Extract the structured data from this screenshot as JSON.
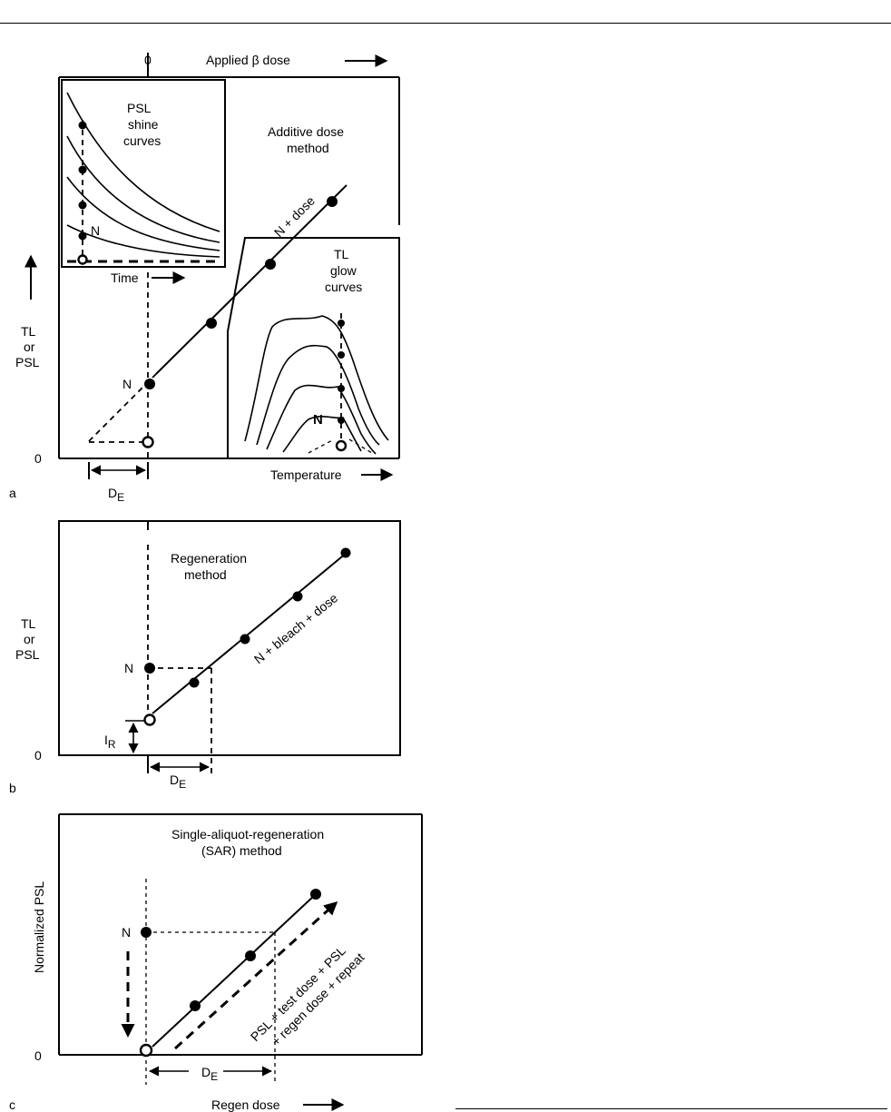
{
  "panel_a": {
    "letter": "a",
    "top_axis": {
      "zero": "0",
      "label": "Applied β dose"
    },
    "y_axis": {
      "line1": "TL",
      "line2": "or",
      "line3": "PSL",
      "zero": "0"
    },
    "method_title": {
      "line1": "Additive dose",
      "line2": "method"
    },
    "line_label": "N + dose",
    "n_label": "N",
    "de_label": {
      "main": "D",
      "sub": "E"
    },
    "psl_inset": {
      "line1": "PSL",
      "line2": "shine",
      "line3": "curves",
      "n_label": "N",
      "x_label": "Time"
    },
    "tl_inset": {
      "line1": "TL",
      "line2": "glow",
      "line3": "curves",
      "n_label": "N",
      "x_label": "Temperature"
    }
  },
  "panel_b": {
    "letter": "b",
    "y_axis": {
      "line1": "TL",
      "line2": "or",
      "line3": "PSL",
      "zero": "0"
    },
    "method_title": {
      "line1": "Regeneration",
      "line2": "method"
    },
    "line_label": "N + bleach + dose",
    "n_label": "N",
    "ir_label": {
      "main": "I",
      "sub": "R"
    },
    "de_label": {
      "main": "D",
      "sub": "E"
    }
  },
  "panel_c": {
    "letter": "c",
    "y_axis": {
      "label": "Normalized PSL",
      "zero": "0"
    },
    "method_title": {
      "line1": "Single-aliquot-regeneration",
      "line2": "(SAR) method"
    },
    "arrow_label": {
      "line1": "PSL + test dose + PSL",
      "line2": "+ regen dose + repeat"
    },
    "n_label": "N",
    "de_label": {
      "main": "D",
      "sub": "E"
    },
    "x_axis": {
      "label": "Regen dose"
    }
  }
}
